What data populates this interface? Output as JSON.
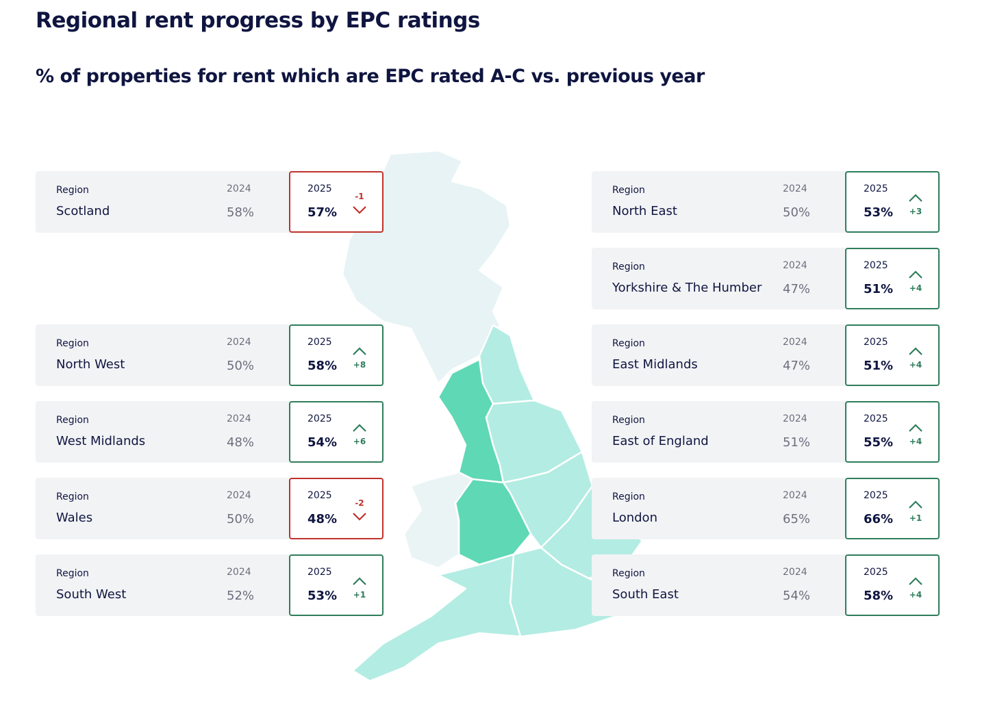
{
  "title": "Regional rent progress by EPC ratings",
  "subtitle": "% of properties for rent which are EPC rated A-C vs. previous year",
  "left_cards": [
    {
      "label": "Region",
      "name": "Scotland",
      "prev_year": "2024",
      "prev": "58%",
      "curr_year": "2025",
      "curr": "57%",
      "change": "-1",
      "trend": "down"
    },
    {
      "label": "Region",
      "name": "North West",
      "prev_year": "2024",
      "prev": "50%",
      "curr_year": "2025",
      "curr": "58%",
      "change": "+8",
      "trend": "up"
    },
    {
      "label": "Region",
      "name": "West Midlands",
      "prev_year": "2024",
      "prev": "48%",
      "curr_year": "2025",
      "curr": "54%",
      "change": "+6",
      "trend": "up"
    },
    {
      "label": "Region",
      "name": "Wales",
      "prev_year": "2024",
      "prev": "50%",
      "curr_year": "2025",
      "curr": "48%",
      "change": "-2",
      "trend": "down"
    },
    {
      "label": "Region",
      "name": "South West",
      "prev_year": "2024",
      "prev": "52%",
      "curr_year": "2025",
      "curr": "53%",
      "change": "+1",
      "trend": "up"
    }
  ],
  "right_cards": [
    {
      "label": "Region",
      "name": "North East",
      "prev_year": "2024",
      "prev": "50%",
      "curr_year": "2025",
      "curr": "53%",
      "change": "+3",
      "trend": "up"
    },
    {
      "label": "Region",
      "name": "Yorkshire & The Humber",
      "prev_year": "2024",
      "prev": "47%",
      "curr_year": "2025",
      "curr": "51%",
      "change": "+4",
      "trend": "up"
    },
    {
      "label": "Region",
      "name": "East Midlands",
      "prev_year": "2024",
      "prev": "47%",
      "curr_year": "2025",
      "curr": "51%",
      "change": "+4",
      "trend": "up"
    },
    {
      "label": "Region",
      "name": "East of England",
      "prev_year": "2024",
      "prev": "51%",
      "curr_year": "2025",
      "curr": "55%",
      "change": "+4",
      "trend": "up"
    },
    {
      "label": "Region",
      "name": "London",
      "prev_year": "2024",
      "prev": "65%",
      "curr_year": "2025",
      "curr": "66%",
      "change": "+1",
      "trend": "up"
    },
    {
      "label": "Region",
      "name": "South East",
      "prev_year": "2024",
      "prev": "54%",
      "curr_year": "2025",
      "curr": "58%",
      "change": "+4",
      "trend": "up"
    }
  ]
}
